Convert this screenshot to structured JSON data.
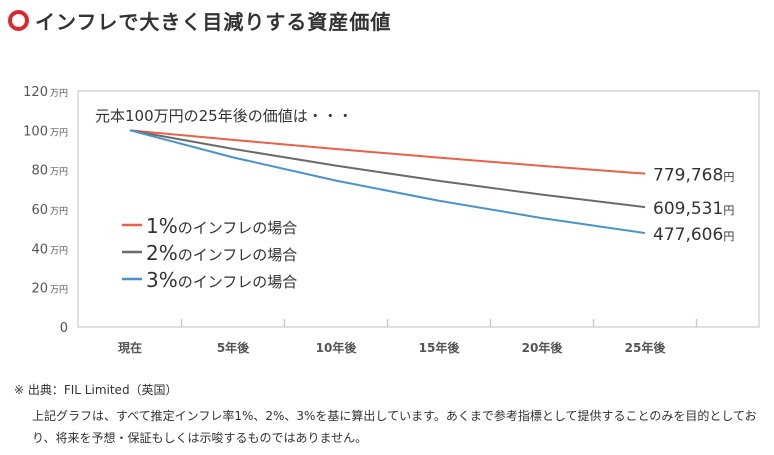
{
  "title": "インフレで大きく目減りする資産価値",
  "icon": "red-circle-icon",
  "chart_data": {
    "type": "line",
    "title": "元本100万円の25年後の価値は・・・",
    "categories": [
      "現在",
      "5年後",
      "10年後",
      "15年後",
      "20年後",
      "25年後"
    ],
    "y_ticks": [
      {
        "value": 0,
        "label": "0",
        "unit": ""
      },
      {
        "value": 20,
        "label": "20",
        "unit": "万円"
      },
      {
        "value": 40,
        "label": "40",
        "unit": "万円"
      },
      {
        "value": 60,
        "label": "60",
        "unit": "万円"
      },
      {
        "value": 80,
        "label": "80",
        "unit": "万円"
      },
      {
        "value": 100,
        "label": "100",
        "unit": "万円"
      },
      {
        "value": 120,
        "label": "120",
        "unit": "万円"
      }
    ],
    "ylim": [
      0,
      120
    ],
    "ylabel_unit": "万円",
    "legend_position": "center-left",
    "series": [
      {
        "name": "1%のインフレの場合",
        "pct": "1%",
        "suffix": "のインフレの場合",
        "color": "#e8624a",
        "values": [
          100,
          95.15,
          90.53,
          86.13,
          81.95,
          77.98
        ],
        "end_label": "779,768",
        "end_unit": "円"
      },
      {
        "name": "2%のインフレの場合",
        "pct": "2%",
        "suffix": "のインフレの場合",
        "color": "#6b6b6b",
        "values": [
          100,
          90.57,
          82.03,
          74.3,
          67.3,
          60.95
        ],
        "end_label": "609,531",
        "end_unit": "円"
      },
      {
        "name": "3%のインフレの場合",
        "pct": "3%",
        "suffix": "のインフレの場合",
        "color": "#4a93c8",
        "values": [
          100,
          86.26,
          74.41,
          64.19,
          55.37,
          47.76
        ],
        "end_label": "477,606",
        "end_unit": "円"
      }
    ]
  },
  "source": "※  出典：FIL Limited（英国）",
  "disclaimer": "上記グラフは、すべて推定インフレ率1%、2%、3%を基に算出しています。あくまで参考指標として提供することのみを目的としており、将来を予想・保証もしくは示唆するものではありません。"
}
